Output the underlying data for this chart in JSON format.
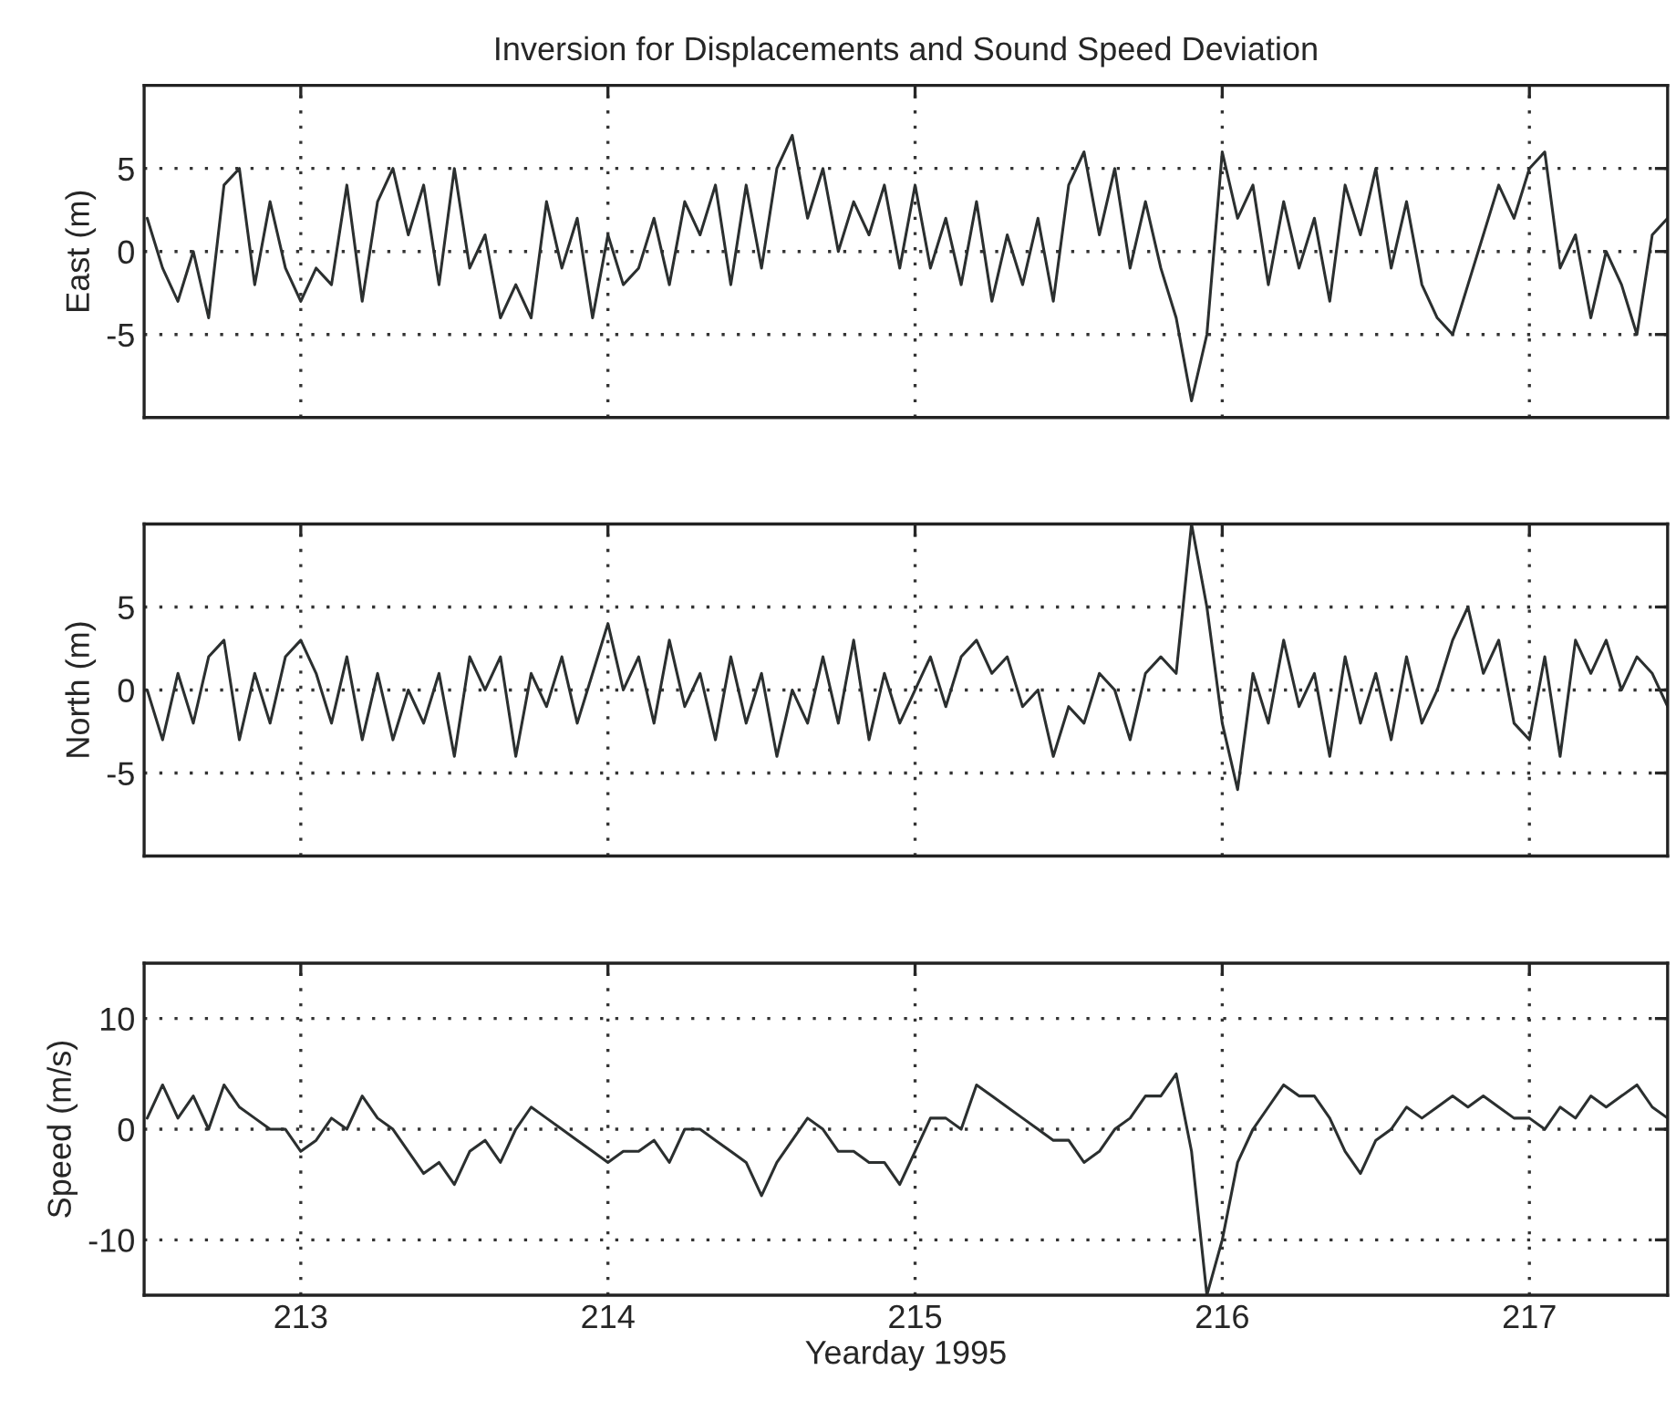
{
  "chart_data": [
    {
      "type": "line",
      "title": "Inversion for Displacements and Sound Speed Deviation",
      "ylabel": "East (m)",
      "xlim": [
        212.49,
        217.45
      ],
      "xticks": [
        213,
        214,
        215,
        216,
        217
      ],
      "ylim": [
        -10,
        10
      ],
      "yticks": [
        -5,
        0,
        5
      ],
      "grid": true,
      "tick_labels": "y",
      "line_style": "solid",
      "x": [
        212.5,
        212.55,
        212.6,
        212.65,
        212.7,
        212.75,
        212.8,
        212.85,
        212.9,
        212.95,
        213.0,
        213.05,
        213.1,
        213.15,
        213.2,
        213.25,
        213.3,
        213.35,
        213.4,
        213.45,
        213.5,
        213.55,
        213.6,
        213.65,
        213.7,
        213.75,
        213.8,
        213.85,
        213.9,
        213.95,
        214.0,
        214.05,
        214.1,
        214.15,
        214.2,
        214.25,
        214.3,
        214.35,
        214.4,
        214.45,
        214.5,
        214.55,
        214.6,
        214.65,
        214.7,
        214.75,
        214.8,
        214.85,
        214.9,
        214.95,
        215.0,
        215.05,
        215.1,
        215.15,
        215.2,
        215.25,
        215.3,
        215.35,
        215.4,
        215.45,
        215.5,
        215.55,
        215.6,
        215.65,
        215.7,
        215.75,
        215.8,
        215.85,
        215.9,
        215.95,
        216.0,
        216.05,
        216.1,
        216.15,
        216.2,
        216.25,
        216.3,
        216.35,
        216.4,
        216.45,
        216.5,
        216.55,
        216.6,
        216.65,
        216.7,
        216.75,
        216.8,
        216.85,
        216.9,
        216.95,
        217.0,
        217.05,
        217.1,
        217.15,
        217.2,
        217.25,
        217.3,
        217.35,
        217.4,
        217.45
      ],
      "series": [
        {
          "color": "#2b2f2f",
          "values": [
            2,
            -1,
            -3,
            0,
            -4,
            4,
            5,
            -2,
            3,
            -1,
            -3,
            -1,
            -2,
            4,
            -3,
            3,
            5,
            1,
            4,
            -2,
            5,
            -1,
            1,
            -4,
            -2,
            -4,
            3,
            -1,
            2,
            -4,
            1,
            -2,
            -1,
            2,
            -2,
            3,
            1,
            4,
            -2,
            4,
            -1,
            5,
            7,
            2,
            5,
            0,
            3,
            1,
            4,
            -1,
            4,
            -1,
            2,
            -2,
            3,
            -3,
            1,
            -2,
            2,
            -3,
            4,
            6,
            1,
            5,
            -1,
            3,
            -1,
            -4,
            -9,
            -5,
            6,
            2,
            4,
            -2,
            3,
            -1,
            2,
            -3,
            4,
            1,
            5,
            -1,
            3,
            -2,
            -4,
            -5,
            -2,
            1,
            4,
            2,
            5,
            6,
            -1,
            1,
            -4,
            0,
            -2,
            -5,
            1,
            2
          ]
        }
      ]
    },
    {
      "type": "line",
      "ylabel": "North (m)",
      "xlim": [
        212.49,
        217.45
      ],
      "xticks": [
        213,
        214,
        215,
        216,
        217
      ],
      "ylim": [
        -10,
        10
      ],
      "yticks": [
        -5,
        0,
        5
      ],
      "grid": true,
      "tick_labels": "y",
      "line_style": "solid",
      "x": [
        212.5,
        212.55,
        212.6,
        212.65,
        212.7,
        212.75,
        212.8,
        212.85,
        212.9,
        212.95,
        213.0,
        213.05,
        213.1,
        213.15,
        213.2,
        213.25,
        213.3,
        213.35,
        213.4,
        213.45,
        213.5,
        213.55,
        213.6,
        213.65,
        213.7,
        213.75,
        213.8,
        213.85,
        213.9,
        213.95,
        214.0,
        214.05,
        214.1,
        214.15,
        214.2,
        214.25,
        214.3,
        214.35,
        214.4,
        214.45,
        214.5,
        214.55,
        214.6,
        214.65,
        214.7,
        214.75,
        214.8,
        214.85,
        214.9,
        214.95,
        215.0,
        215.05,
        215.1,
        215.15,
        215.2,
        215.25,
        215.3,
        215.35,
        215.4,
        215.45,
        215.5,
        215.55,
        215.6,
        215.65,
        215.7,
        215.75,
        215.8,
        215.85,
        215.9,
        215.95,
        216.0,
        216.05,
        216.1,
        216.15,
        216.2,
        216.25,
        216.3,
        216.35,
        216.4,
        216.45,
        216.5,
        216.55,
        216.6,
        216.65,
        216.7,
        216.75,
        216.8,
        216.85,
        216.9,
        216.95,
        217.0,
        217.05,
        217.1,
        217.15,
        217.2,
        217.25,
        217.3,
        217.35,
        217.4,
        217.45
      ],
      "series": [
        {
          "color": "#2b2f2f",
          "values": [
            0,
            -3,
            1,
            -2,
            2,
            3,
            -3,
            1,
            -2,
            2,
            3,
            1,
            -2,
            2,
            -3,
            1,
            -3,
            0,
            -2,
            1,
            -4,
            2,
            0,
            2,
            -4,
            1,
            -1,
            2,
            -2,
            1,
            4,
            0,
            2,
            -2,
            3,
            -1,
            1,
            -3,
            2,
            -2,
            1,
            -4,
            0,
            -2,
            2,
            -2,
            3,
            -3,
            1,
            -2,
            0,
            2,
            -1,
            2,
            3,
            1,
            2,
            -1,
            0,
            -4,
            -1,
            -2,
            1,
            0,
            -3,
            1,
            2,
            1,
            10,
            5,
            -2,
            -6,
            1,
            -2,
            3,
            -1,
            1,
            -4,
            2,
            -2,
            1,
            -3,
            2,
            -2,
            0,
            3,
            5,
            1,
            3,
            -2,
            -3,
            2,
            -4,
            3,
            1,
            3,
            0,
            2,
            1,
            -1
          ]
        }
      ]
    },
    {
      "type": "line",
      "ylabel": "Speed (m/s)",
      "xlabel": "Yearday 1995",
      "xlim": [
        212.49,
        217.45
      ],
      "xticks": [
        213,
        214,
        215,
        216,
        217
      ],
      "ylim": [
        -15,
        15
      ],
      "yticks": [
        -10,
        0,
        10
      ],
      "grid": true,
      "line_style": "solid",
      "x": [
        212.5,
        212.55,
        212.6,
        212.65,
        212.7,
        212.75,
        212.8,
        212.85,
        212.9,
        212.95,
        213.0,
        213.05,
        213.1,
        213.15,
        213.2,
        213.25,
        213.3,
        213.35,
        213.4,
        213.45,
        213.5,
        213.55,
        213.6,
        213.65,
        213.7,
        213.75,
        213.8,
        213.85,
        213.9,
        213.95,
        214.0,
        214.05,
        214.1,
        214.15,
        214.2,
        214.25,
        214.3,
        214.35,
        214.4,
        214.45,
        214.5,
        214.55,
        214.6,
        214.65,
        214.7,
        214.75,
        214.8,
        214.85,
        214.9,
        214.95,
        215.0,
        215.05,
        215.1,
        215.15,
        215.2,
        215.25,
        215.3,
        215.35,
        215.4,
        215.45,
        215.5,
        215.55,
        215.6,
        215.65,
        215.7,
        215.75,
        215.8,
        215.85,
        215.9,
        215.95,
        216.0,
        216.05,
        216.1,
        216.15,
        216.2,
        216.25,
        216.3,
        216.35,
        216.4,
        216.45,
        216.5,
        216.55,
        216.6,
        216.65,
        216.7,
        216.75,
        216.8,
        216.85,
        216.9,
        216.95,
        217.0,
        217.05,
        217.1,
        217.15,
        217.2,
        217.25,
        217.3,
        217.35,
        217.4,
        217.45
      ],
      "series": [
        {
          "color": "#2b2f2f",
          "values": [
            1,
            4,
            1,
            3,
            0,
            4,
            2,
            1,
            0,
            0,
            -2,
            -1,
            1,
            0,
            3,
            1,
            0,
            -2,
            -4,
            -3,
            -5,
            -2,
            -1,
            -3,
            0,
            2,
            1,
            0,
            -1,
            -2,
            -3,
            -2,
            -2,
            -1,
            -3,
            0,
            0,
            -1,
            -2,
            -3,
            -6,
            -3,
            -1,
            1,
            0,
            -2,
            -2,
            -3,
            -3,
            -5,
            -2,
            1,
            1,
            0,
            4,
            3,
            2,
            1,
            0,
            -1,
            -1,
            -3,
            -2,
            0,
            1,
            3,
            3,
            5,
            -2,
            -15,
            -10,
            -3,
            0,
            2,
            4,
            3,
            3,
            1,
            -2,
            -4,
            -1,
            0,
            2,
            1,
            2,
            3,
            2,
            3,
            2,
            1,
            1,
            0,
            2,
            1,
            3,
            2,
            3,
            4,
            2,
            1
          ]
        }
      ]
    }
  ]
}
